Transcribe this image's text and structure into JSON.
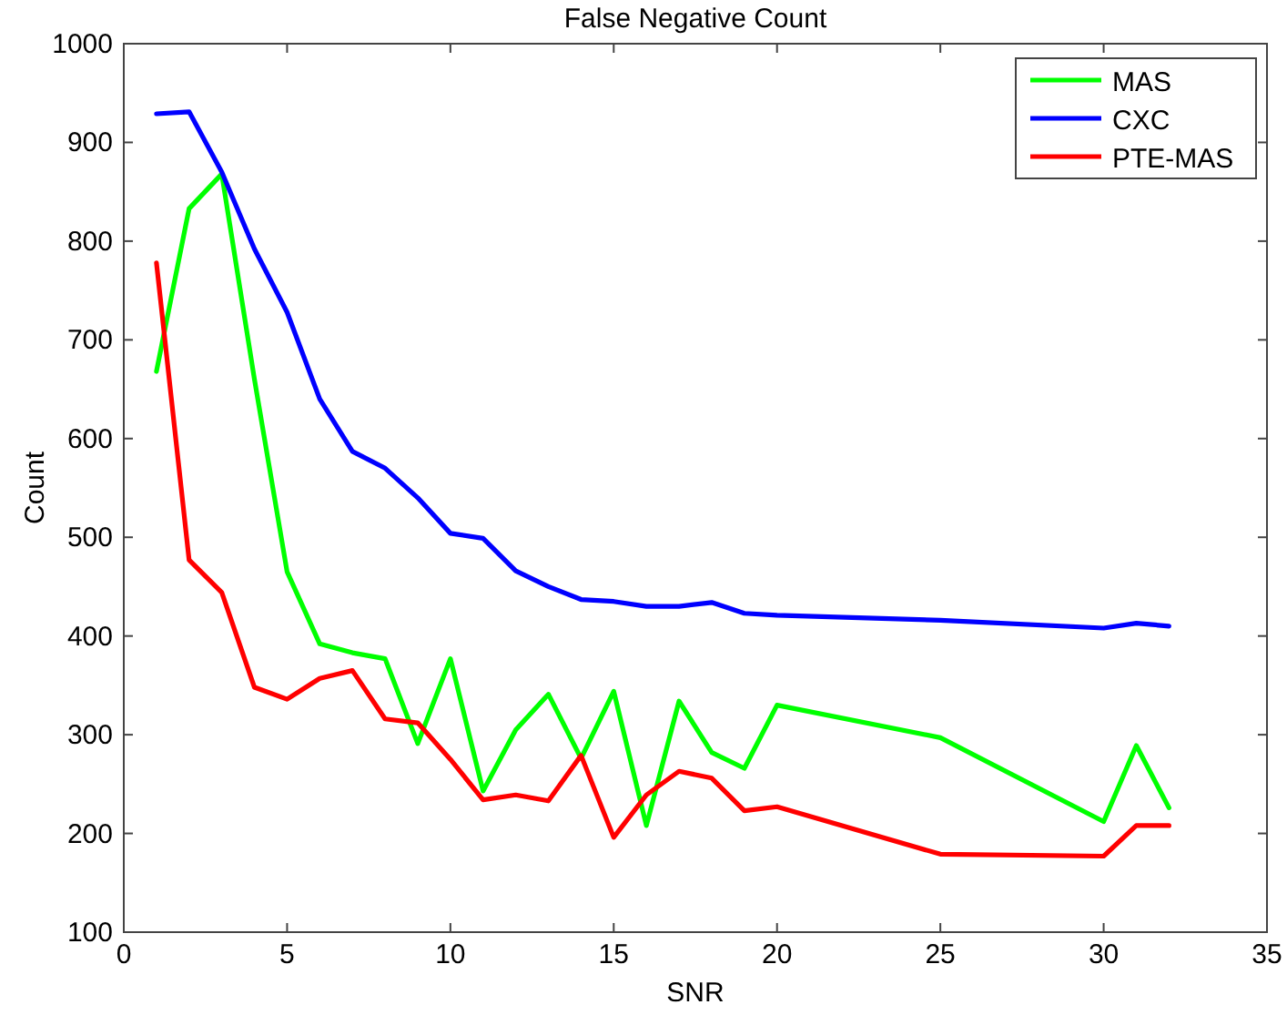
{
  "chart_data": {
    "type": "line",
    "title": "False Negative Count",
    "xlabel": "SNR",
    "ylabel": "Count",
    "x": [
      1,
      2,
      3,
      4,
      5,
      6,
      7,
      8,
      9,
      10,
      11,
      12,
      13,
      14,
      15,
      16,
      17,
      18,
      19,
      20,
      25,
      30,
      31,
      32
    ],
    "series": [
      {
        "name": "MAS",
        "color": "#00ff00",
        "values": [
          668,
          833,
          868,
          660,
          465,
          392,
          383,
          377,
          291,
          377,
          243,
          305,
          341,
          276,
          344,
          208,
          334,
          282,
          266,
          330,
          297,
          212,
          289,
          226
        ]
      },
      {
        "name": "CXC",
        "color": "#0000ff",
        "values": [
          929,
          931,
          870,
          792,
          728,
          640,
          587,
          570,
          540,
          504,
          499,
          466,
          450,
          437,
          435,
          430,
          430,
          434,
          423,
          421,
          416,
          408,
          413,
          410
        ]
      },
      {
        "name": "PTE-MAS",
        "color": "#ff0000",
        "values": [
          778,
          477,
          444,
          348,
          336,
          357,
          365,
          316,
          312,
          275,
          234,
          239,
          233,
          279,
          196,
          239,
          263,
          256,
          223,
          227,
          179,
          177,
          208,
          208
        ]
      }
    ],
    "xlim": [
      0,
      35
    ],
    "xticks": [
      0,
      5,
      10,
      15,
      20,
      25,
      30,
      35
    ],
    "ylim": [
      100,
      1000
    ],
    "yticks": [
      100,
      200,
      300,
      400,
      500,
      600,
      700,
      800,
      900,
      1000
    ],
    "grid": false,
    "legend": "top right",
    "marker": "none",
    "line_style": "solid"
  }
}
